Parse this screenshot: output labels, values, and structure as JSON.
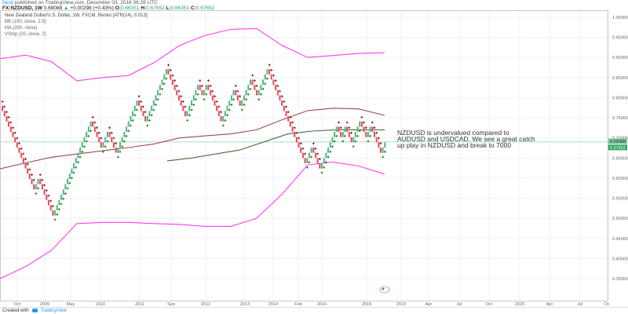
{
  "header": {
    "user": "facot",
    "published": "published on TradingView.com, December 03, 2018 06:28 UTC",
    "symbol": "FX:NZDUSD, 1W",
    "last": "0.69088",
    "change": "+0.00298 (+0.43%)",
    "o_label": "O:",
    "o": "0.66351",
    "h_label": "H:",
    "h": "0.67652",
    "l_label": "L:",
    "l": "0.66351",
    "c_label": "C:",
    "c": "0.67652"
  },
  "legend": [
    "New Zealand Dollar/U.S. Dollar, 1W, FXCM, Renko [ATR(14), 0.013]",
    "BB (100, close, 2.5)",
    "MA (200, close)",
    "VStop (20, close, 2)"
  ],
  "annotation": "NZDUSD is undervalued compared to AUDUSD and USDCAD. We see a great catch up play in NZDUSD and break to 7000",
  "footer": {
    "created_with": "Created with",
    "brand": "TradingView"
  },
  "colors": {
    "up": "#53b987",
    "down": "#eb4d5c",
    "bb": "#ff3cf0",
    "ma": "#9c4b4b",
    "vstop_up": "#1b7a1b",
    "vstop_down": "#7a1b1b",
    "vstop_line": "#4a6b3a",
    "price_line": "#9fd8bd",
    "grid": "#eef1f8"
  },
  "chart_data": {
    "type": "renko",
    "brick_size": 0.013,
    "renko_swings": [
      0.78,
      0.57,
      0.6,
      0.507,
      0.74,
      0.68,
      0.72,
      0.665,
      0.79,
      0.745,
      0.867,
      0.75,
      0.83,
      0.8,
      0.835,
      0.745,
      0.82,
      0.775,
      0.85,
      0.8,
      0.87,
      0.64,
      0.67,
      0.63,
      0.73,
      0.7,
      0.73,
      0.69,
      0.745,
      0.7,
      0.73,
      0.66,
      0.69
    ],
    "bb_upper": [
      0.897,
      0.906,
      0.89,
      0.842,
      0.85,
      0.855,
      0.887,
      0.93,
      0.955,
      0.97,
      0.972,
      0.93,
      0.9,
      0.905,
      0.91,
      0.912
    ],
    "bb_lower": [
      0.35,
      0.38,
      0.42,
      0.487,
      0.49,
      0.49,
      0.487,
      0.485,
      0.48,
      0.48,
      0.5,
      0.56,
      0.633,
      0.64,
      0.63,
      0.61
    ],
    "ma": [
      0.623,
      0.638,
      0.652,
      0.66,
      0.668,
      0.676,
      0.685,
      0.7,
      0.705,
      0.71,
      0.72,
      0.745,
      0.768,
      0.774,
      0.772,
      0.756
    ],
    "vstop_line": [
      0.643,
      0.65,
      0.66,
      0.67,
      0.69,
      0.71,
      0.717,
      0.72,
      0.72,
      0.72
    ],
    "current_line": 0.69,
    "y_axis": {
      "min": 0.35,
      "max": 1.0,
      "ticks": [
        "1.00000",
        "0.95000",
        "0.90000",
        "0.85000",
        "0.80000",
        "0.75000",
        "0.70000",
        "0.65000",
        "0.60000",
        "0.55000",
        "0.50000",
        "0.45000",
        "0.40000",
        "0.35000"
      ]
    },
    "price_labels": [
      "0.69088",
      "0.67652"
    ],
    "x_axis": {
      "ticks": [
        "Oct",
        "2009",
        "May",
        "2010",
        "2011",
        "Sep",
        "2012",
        "2013",
        "2014",
        "Feb",
        "2016",
        "2018",
        "2019",
        "Apr",
        "Jul",
        "Oct",
        "2020",
        "Apr",
        "Jul",
        "Oc"
      ]
    }
  }
}
